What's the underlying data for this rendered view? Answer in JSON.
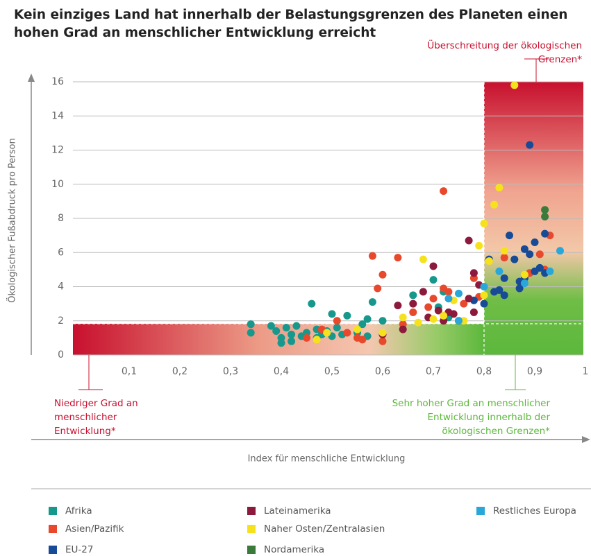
{
  "chart_data": {
    "type": "scatter",
    "title": [
      "Kein einziges Land hat innerhalb der Belastungsgrenzen des Planeten einen",
      "hohen Grad an menschlicher Entwicklung erreicht"
    ],
    "x_label": "Index für menschliche Entwicklung",
    "y_label": "Ökologischer Fußabdruck pro Person",
    "annotations": [
      {
        "lines": [
          "Überschreitung der ökologischen",
          "Grenzen*"
        ],
        "color": "#c8102e"
      },
      {
        "lines": [
          "Niedriger Grad an",
          "menschlicher",
          "Entwicklung*"
        ],
        "color": "#c8102e"
      },
      {
        "lines": [
          "Sehr hoher Grad an menschlicher",
          "Entwicklung innerhalb der",
          "ökologischen Grenzen*"
        ],
        "color": "#5cb83c"
      }
    ],
    "xlim": [
      0,
      1
    ],
    "xticks": [
      {
        "value": 0.1,
        "label": "0,1"
      },
      {
        "value": 0.2,
        "label": "0,2"
      },
      {
        "value": 0.3,
        "label": "0,3"
      },
      {
        "value": 0.4,
        "label": "0,4"
      },
      {
        "value": 0.5,
        "label": "0,5"
      },
      {
        "value": 0.6,
        "label": "0,6"
      },
      {
        "value": 0.7,
        "label": "0,7"
      },
      {
        "value": 0.8,
        "label": "0,8"
      },
      {
        "value": 0.9,
        "label": "0,9"
      },
      1
    ],
    "ylim": [
      0,
      16
    ],
    "yticks": [
      0,
      2,
      4,
      6,
      8,
      10,
      12,
      14,
      16
    ],
    "grid": true,
    "series": [
      {
        "name": "Afrika",
        "color": "#16998c",
        "x": [
          0.34,
          0.34,
          0.38,
          0.39,
          0.4,
          0.4,
          0.41,
          0.42,
          0.42,
          0.43,
          0.44,
          0.45,
          0.46,
          0.47,
          0.47,
          0.48,
          0.49,
          0.5,
          0.5,
          0.51,
          0.52,
          0.53,
          0.55,
          0.56,
          0.57,
          0.58,
          0.57,
          0.6,
          0.66,
          0.7,
          0.72,
          0.71,
          0.73
        ],
        "values": [
          1.8,
          1.3,
          1.7,
          1.4,
          1.0,
          0.7,
          1.6,
          0.8,
          1.2,
          1.7,
          1.1,
          1.3,
          3.0,
          1.5,
          1.0,
          1.2,
          1.4,
          1.1,
          2.4,
          1.6,
          1.2,
          2.3,
          1.3,
          1.8,
          2.1,
          3.1,
          1.1,
          2.0,
          3.5,
          4.4,
          3.7,
          2.8,
          2.2
        ]
      },
      {
        "name": "Asien/Pazifik",
        "color": "#e8482c",
        "x": [
          0.45,
          0.48,
          0.51,
          0.53,
          0.55,
          0.56,
          0.58,
          0.59,
          0.6,
          0.6,
          0.63,
          0.64,
          0.66,
          0.69,
          0.7,
          0.72,
          0.72,
          0.73,
          0.76,
          0.78,
          0.79,
          0.84,
          0.89,
          0.91,
          0.93,
          0.92
        ],
        "values": [
          1.0,
          1.5,
          2.0,
          1.3,
          1.0,
          0.9,
          5.8,
          3.9,
          4.7,
          0.8,
          5.7,
          1.8,
          2.5,
          2.8,
          3.3,
          9.6,
          3.9,
          3.7,
          3.0,
          4.5,
          3.4,
          5.7,
          4.8,
          5.9,
          7.0,
          5.0
        ]
      },
      {
        "name": "EU-27",
        "color": "#174a97",
        "x": [
          0.78,
          0.8,
          0.81,
          0.82,
          0.83,
          0.84,
          0.84,
          0.85,
          0.86,
          0.87,
          0.88,
          0.88,
          0.89,
          0.89,
          0.9,
          0.9,
          0.91,
          0.92,
          0.92,
          0.87
        ],
        "values": [
          3.2,
          3.0,
          5.6,
          3.7,
          3.8,
          4.5,
          3.5,
          7.0,
          5.6,
          4.3,
          4.5,
          6.2,
          12.3,
          5.9,
          6.6,
          4.9,
          5.1,
          7.1,
          4.8,
          3.9
        ]
      },
      {
        "name": "Lateinamerika",
        "color": "#8c1a3c",
        "x": [
          0.6,
          0.63,
          0.64,
          0.66,
          0.68,
          0.69,
          0.7,
          0.71,
          0.72,
          0.73,
          0.74,
          0.75,
          0.77,
          0.77,
          0.78,
          0.78,
          0.79
        ],
        "values": [
          1.2,
          2.9,
          1.5,
          3.0,
          3.7,
          2.2,
          5.2,
          2.6,
          2.0,
          2.5,
          2.4,
          2.0,
          6.7,
          3.3,
          2.5,
          4.8,
          4.1
        ]
      },
      {
        "name": "Naher Osten/Zentralasien",
        "color": "#f6e21c",
        "x": [
          0.47,
          0.49,
          0.55,
          0.6,
          0.64,
          0.67,
          0.68,
          0.7,
          0.72,
          0.74,
          0.76,
          0.79,
          0.8,
          0.81,
          0.82,
          0.83,
          0.84,
          0.86,
          0.88,
          0.8
        ],
        "values": [
          0.9,
          1.3,
          1.5,
          1.3,
          2.2,
          1.9,
          5.6,
          2.1,
          2.3,
          3.2,
          2.0,
          6.4,
          7.7,
          5.5,
          8.8,
          9.8,
          6.1,
          15.8,
          4.7,
          3.5
        ]
      },
      {
        "name": "Nordamerika",
        "color": "#3a7a3a",
        "x": [
          0.92,
          0.92
        ],
        "values": [
          8.1,
          8.5
        ]
      },
      {
        "name": "Restliches Europa",
        "color": "#2aa7d9",
        "x": [
          0.73,
          0.75,
          0.8,
          0.83,
          0.88,
          0.93,
          0.95,
          0.75
        ],
        "values": [
          3.3,
          3.6,
          4.0,
          4.9,
          4.2,
          4.9,
          6.1,
          2.0
        ]
      }
    ]
  }
}
